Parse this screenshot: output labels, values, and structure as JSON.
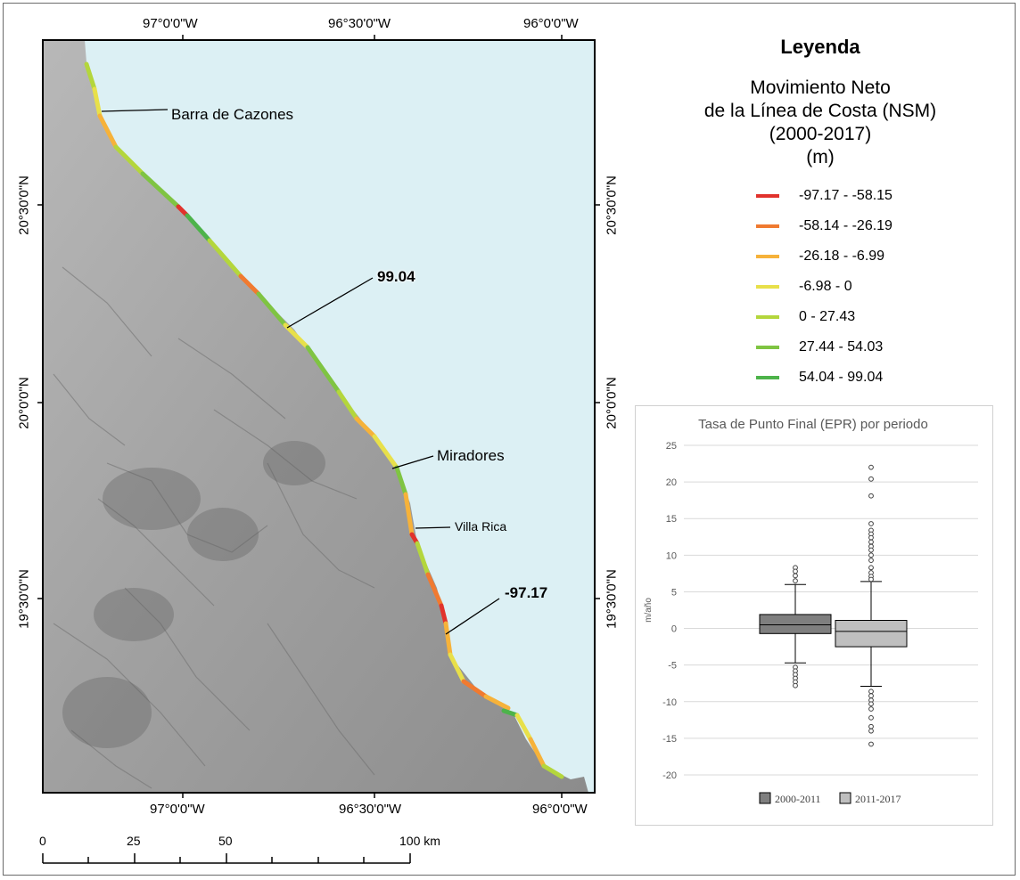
{
  "map": {
    "top_ticks": [
      "97°0'0\"W",
      "96°30'0\"W",
      "96°0'0\"W"
    ],
    "bottom_ticks": [
      "97°0'0\"W",
      "96°30'0\"W",
      "96°0'0\"W"
    ],
    "left_ticks": [
      "20°30'0\"N",
      "20°0'0\"N",
      "19°30'0\"N"
    ],
    "right_ticks": [
      "20°30'0\"N",
      "20°0'0\"N",
      "19°30'0\"N"
    ],
    "labels": {
      "barra": "Barra de Cazones",
      "max_value": "99.04",
      "miradores": "Miradores",
      "villa_rica": "Villa Rica",
      "min_value": "-97.17"
    },
    "colors": {
      "sea": "#dcf0f4",
      "land": "#a9a9a9"
    }
  },
  "legend": {
    "title": "Leyenda",
    "subtitle_lines": [
      "Movimiento Neto",
      "de la Línea de Costa (NSM)",
      "(2000-2017)",
      "(m)"
    ],
    "items": [
      {
        "label": "-97.17 - -58.15",
        "color": "#e1322c"
      },
      {
        "label": "-58.14 - -26.19",
        "color": "#f07a30"
      },
      {
        "label": "-26.18 - -6.99",
        "color": "#f6b23a"
      },
      {
        "label": "-6.98 - 0",
        "color": "#e8e04a"
      },
      {
        "label": "0 - 27.43",
        "color": "#b4d63c"
      },
      {
        "label": "27.44 - 54.03",
        "color": "#7fc442"
      },
      {
        "label": "54.04 - 99.04",
        "color": "#4db34a"
      }
    ]
  },
  "scalebar": {
    "labels": [
      "0",
      "25",
      "50",
      "100 km"
    ]
  },
  "chart_data": {
    "type": "box",
    "title": "Tasa de Punto Final (EPR) por periodo",
    "ylabel": "m/año",
    "ylim": [
      -20,
      25
    ],
    "yticks": [
      "25",
      "20",
      "15",
      "10",
      "5",
      "0",
      "-5",
      "-10",
      "-15",
      "-20"
    ],
    "series": [
      {
        "name": "2000-2011",
        "color": "#7f7f7f",
        "q1": -0.7,
        "median": 0.5,
        "q3": 1.9,
        "whisker_low": -4.7,
        "whisker_high": 6.0,
        "outliers": [
          8.3,
          7.8,
          7.2,
          6.5,
          -5.3,
          -5.8,
          -6.3,
          -6.8,
          -7.3,
          -7.8
        ]
      },
      {
        "name": "2011-2017",
        "color": "#bfbfbf",
        "q1": -2.5,
        "median": -0.4,
        "q3": 1.1,
        "whisker_low": -7.9,
        "whisker_high": 6.4,
        "outliers": [
          22.0,
          20.4,
          18.1,
          14.3,
          13.4,
          12.9,
          12.4,
          11.8,
          11.2,
          10.7,
          10.0,
          9.3,
          8.3,
          7.6,
          7.1,
          6.7,
          -8.6,
          -9.2,
          -9.8,
          -10.3,
          -11.0,
          -12.2,
          -13.4,
          -14.0,
          -15.8
        ]
      }
    ],
    "legend": [
      "2000-2011",
      "2011-2017"
    ]
  }
}
